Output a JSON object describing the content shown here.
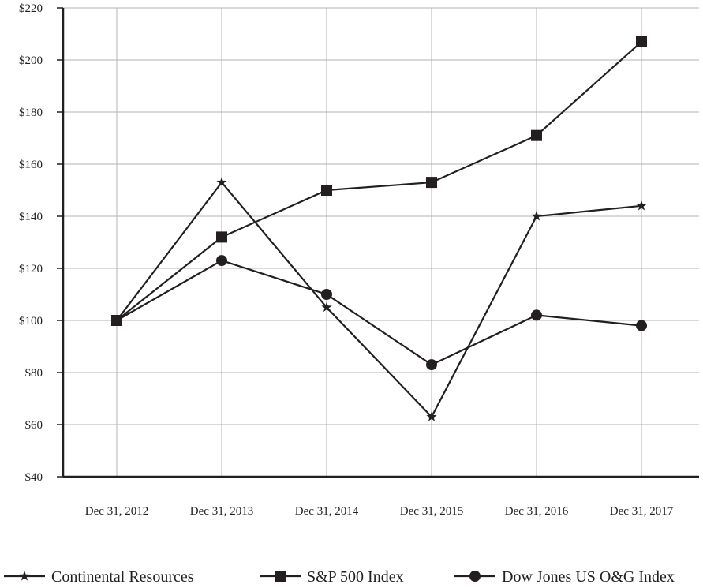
{
  "chart_data": {
    "type": "line",
    "categories": [
      "Dec 31, 2012",
      "Dec 31, 2013",
      "Dec 31, 2014",
      "Dec 31, 2015",
      "Dec 31, 2016",
      "Dec 31, 2017"
    ],
    "y_ticks": [
      "$40",
      "$60",
      "$80",
      "$100",
      "$120",
      "$140",
      "$160",
      "$180",
      "$200",
      "$220"
    ],
    "ylim": [
      40,
      220
    ],
    "grid": true,
    "legend_position": "bottom",
    "series": [
      {
        "name": "Continental Resources",
        "marker": "star",
        "values": [
          100,
          153,
          105,
          63,
          140,
          144
        ]
      },
      {
        "name": "S&P 500 Index",
        "marker": "square",
        "values": [
          100,
          132,
          150,
          153,
          171,
          207
        ]
      },
      {
        "name": "Dow Jones US O&G Index",
        "marker": "circle",
        "values": [
          100,
          123,
          110,
          83,
          102,
          98
        ]
      }
    ],
    "line_color": "#231f20",
    "grid_color": "#b3b3b3"
  }
}
